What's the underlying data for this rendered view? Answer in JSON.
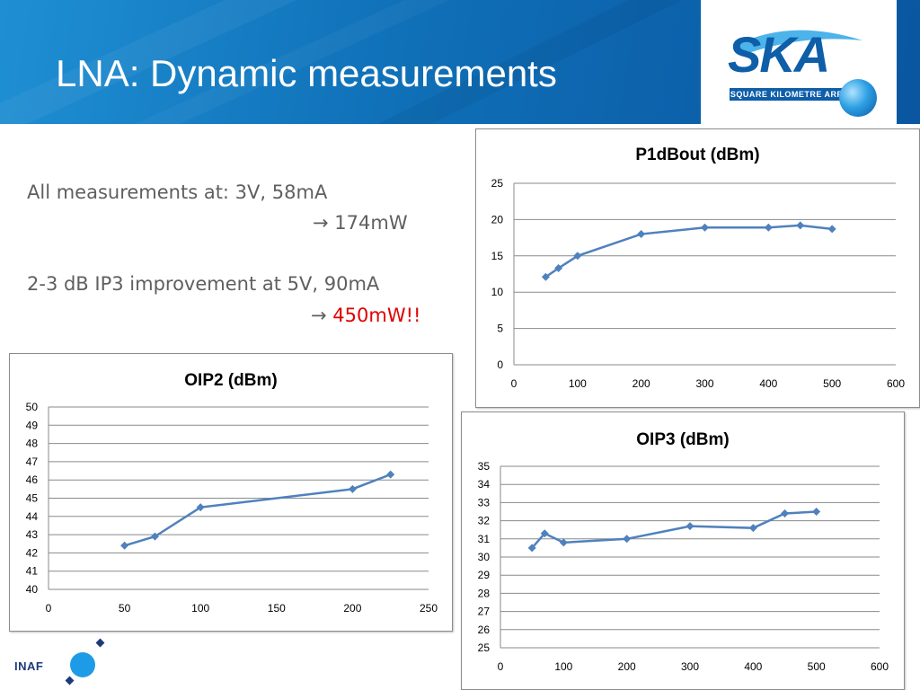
{
  "slide": {
    "title": "LNA: Dynamic measurements",
    "logo": {
      "name": "SKA",
      "subtitle": "SQUARE KILOMETRE ARRAY"
    },
    "footer_logo": "INAF",
    "colors": {
      "banner": "#1479c4",
      "series": "#4f81bd",
      "marker": "#4f81bd",
      "highlight": "#e00000"
    },
    "notes": {
      "line1": "All measurements at: 3V, 58mA",
      "line2_arrow": "→",
      "line2": "174mW",
      "line3": "2-3 dB IP3 improvement at 5V, 90mA",
      "line4_arrow": "→",
      "line4": "450mW!!"
    }
  },
  "chart_data": [
    {
      "id": "p1db",
      "type": "line",
      "title": "P1dBout (dBm)",
      "xlim": [
        0,
        600
      ],
      "ylim": [
        0,
        25
      ],
      "xticks": [
        0,
        100,
        200,
        300,
        400,
        500,
        600
      ],
      "yticks": [
        0,
        5,
        10,
        15,
        20,
        25
      ],
      "grid": true,
      "series": [
        {
          "x": [
            50,
            70,
            100,
            200,
            300,
            400,
            450,
            500
          ],
          "y": [
            12.1,
            13.3,
            15.0,
            18.0,
            18.9,
            18.9,
            19.2,
            18.7
          ]
        }
      ]
    },
    {
      "id": "oip2",
      "type": "line",
      "title": "OIP2 (dBm)",
      "xlim": [
        0,
        250
      ],
      "ylim": [
        40,
        50
      ],
      "xticks": [
        0,
        50,
        100,
        150,
        200,
        250
      ],
      "yticks": [
        40,
        41,
        42,
        43,
        44,
        45,
        46,
        47,
        48,
        49,
        50
      ],
      "grid": true,
      "series": [
        {
          "x": [
            50,
            70,
            100,
            200,
            225
          ],
          "y": [
            42.4,
            42.9,
            44.5,
            45.5,
            46.3
          ]
        }
      ]
    },
    {
      "id": "oip3",
      "type": "line",
      "title": "OIP3 (dBm)",
      "xlim": [
        0,
        600
      ],
      "ylim": [
        25,
        35
      ],
      "xticks": [
        0,
        100,
        200,
        300,
        400,
        500,
        600
      ],
      "yticks": [
        25,
        26,
        27,
        28,
        29,
        30,
        31,
        32,
        33,
        34,
        35
      ],
      "grid": true,
      "series": [
        {
          "x": [
            50,
            70,
            100,
            200,
            300,
            400,
            450,
            500
          ],
          "y": [
            30.5,
            31.3,
            30.8,
            31.0,
            31.7,
            31.6,
            32.4,
            32.5
          ]
        }
      ]
    }
  ]
}
